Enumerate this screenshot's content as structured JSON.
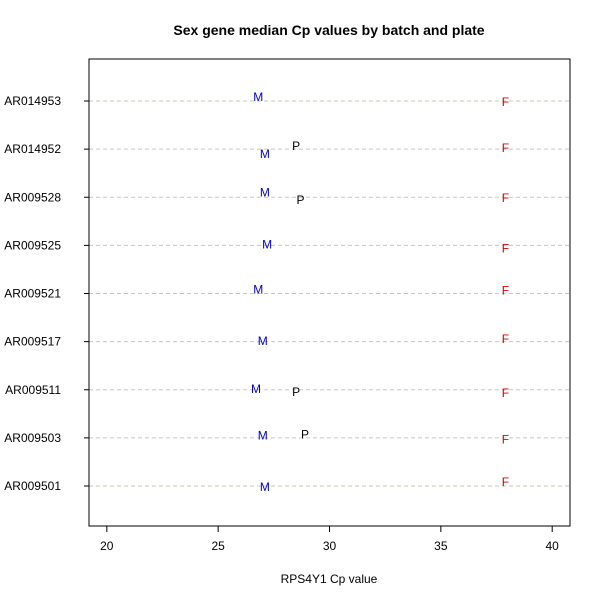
{
  "chart_data": {
    "type": "scatter",
    "title": "Sex gene median Cp values by batch and plate",
    "xlabel": "RPS4Y1 Cp value",
    "ylabel": "",
    "xlim": [
      19.2,
      40.8
    ],
    "xticks": [
      20,
      25,
      30,
      35,
      40
    ],
    "categories": [
      "AR009501",
      "AR009503",
      "AR009511",
      "AR009517",
      "AR009521",
      "AR009525",
      "AR009528",
      "AR014952",
      "AR014953"
    ],
    "grid": "horizontal dashed",
    "series": [
      {
        "marker": "M",
        "color": "#0000cc",
        "points": [
          {
            "category": "AR009501",
            "x": 27.1,
            "offset": -0.02
          },
          {
            "category": "AR009503",
            "x": 27.0,
            "offset": 0.05
          },
          {
            "category": "AR009511",
            "x": 26.7,
            "offset": 0.02
          },
          {
            "category": "AR009517",
            "x": 27.0,
            "offset": 0.01
          },
          {
            "category": "AR009521",
            "x": 26.8,
            "offset": 0.08
          },
          {
            "category": "AR009525",
            "x": 27.2,
            "offset": 0.02
          },
          {
            "category": "AR009528",
            "x": 27.1,
            "offset": 0.1
          },
          {
            "category": "AR014952",
            "x": 27.1,
            "offset": -0.1
          },
          {
            "category": "AR014953",
            "x": 26.8,
            "offset": 0.08
          }
        ]
      },
      {
        "marker": "F",
        "color": "#dd0000",
        "points": [
          {
            "category": "AR009501",
            "x": 37.9,
            "offset": 0.08
          },
          {
            "category": "AR009503",
            "x": 37.9,
            "offset": -0.03
          },
          {
            "category": "AR009511",
            "x": 37.9,
            "offset": -0.07
          },
          {
            "category": "AR009517",
            "x": 37.9,
            "offset": 0.05
          },
          {
            "category": "AR009521",
            "x": 37.9,
            "offset": 0.06
          },
          {
            "category": "AR009525",
            "x": 37.9,
            "offset": -0.07
          },
          {
            "category": "AR009528",
            "x": 37.9,
            "offset": -0.02
          },
          {
            "category": "AR014952",
            "x": 37.9,
            "offset": 0.02
          },
          {
            "category": "AR014953",
            "x": 37.9,
            "offset": -0.02
          }
        ]
      },
      {
        "marker": "P",
        "color": "#000000",
        "points": [
          {
            "category": "AR009503",
            "x": 28.9,
            "offset": 0.07
          },
          {
            "category": "AR009511",
            "x": 28.5,
            "offset": -0.05
          },
          {
            "category": "AR009528",
            "x": 28.7,
            "offset": -0.06
          },
          {
            "category": "AR014952",
            "x": 28.5,
            "offset": 0.06
          }
        ]
      }
    ]
  }
}
